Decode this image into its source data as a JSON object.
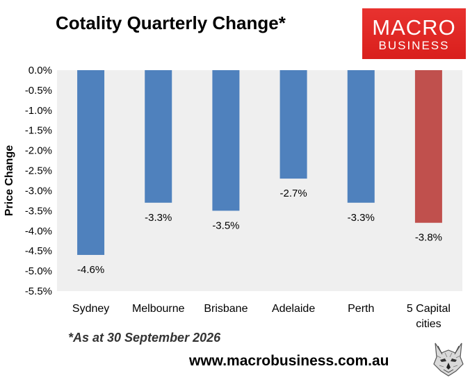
{
  "title": "Cotality Quarterly Change*",
  "logo": {
    "line1": "MACRO",
    "line2": "BUSINESS",
    "color": "#e02826",
    "icon": "wolf-icon"
  },
  "footnote": "*As at 30 September 2026",
  "website": "www.macrobusiness.com.au",
  "colors": {
    "bar_default": "#4f81bd",
    "bar_highlight": "#c0504d",
    "plot_background": "#efefef"
  },
  "chart_data": {
    "type": "bar",
    "title": "Cotality Quarterly Change*",
    "xlabel": "",
    "ylabel": "Price Change",
    "ylim": [
      -5.5,
      0
    ],
    "y_ticks": [
      0,
      -0.5,
      -1,
      -1.5,
      -2,
      -2.5,
      -3,
      -3.5,
      -4,
      -4.5,
      -5,
      -5.5
    ],
    "y_tick_labels": [
      "0.0%",
      "-0.5%",
      "-1.0%",
      "-1.5%",
      "-2.0%",
      "-2.5%",
      "-3.0%",
      "-3.5%",
      "-4.0%",
      "-4.5%",
      "-5.0%",
      "-5.5%"
    ],
    "categories": [
      "Sydney",
      "Melbourne",
      "Brisbane",
      "Adelaide",
      "Perth",
      "5 Capital cities"
    ],
    "category_label_lines": [
      [
        "Sydney"
      ],
      [
        "Melbourne"
      ],
      [
        "Brisbane"
      ],
      [
        "Adelaide"
      ],
      [
        "Perth"
      ],
      [
        "5 Capital",
        "cities"
      ]
    ],
    "values": [
      -4.6,
      -3.3,
      -3.5,
      -2.7,
      -3.3,
      -3.8
    ],
    "data_labels": [
      "-4.6%",
      "-3.3%",
      "-3.5%",
      "-2.7%",
      "-3.3%",
      "-3.8%"
    ],
    "highlight_index": 5,
    "grid": false,
    "legend": "none"
  }
}
